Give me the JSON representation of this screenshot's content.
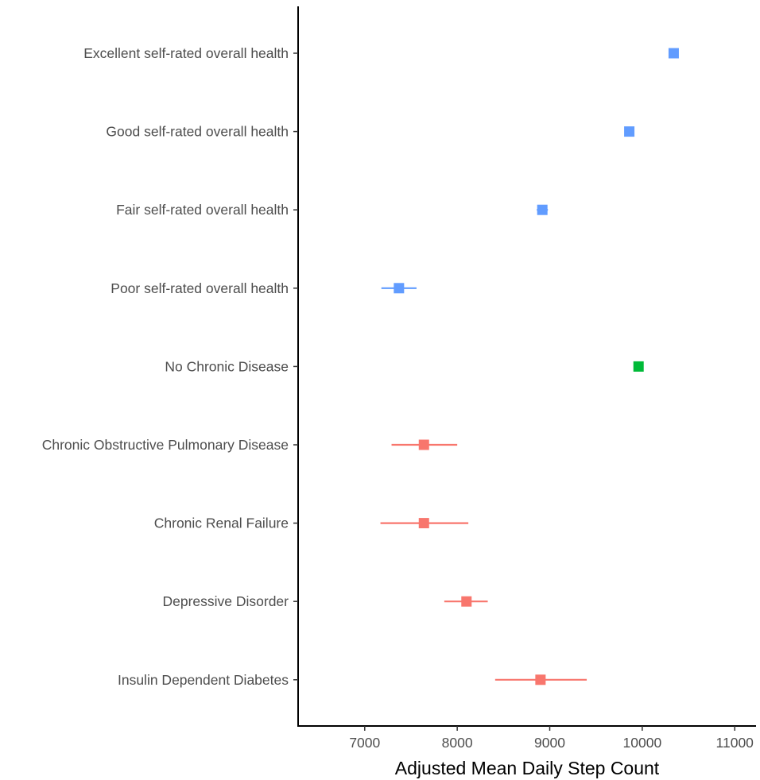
{
  "chart_data": {
    "type": "scatter",
    "subtype": "forest-plot",
    "title": "",
    "xlabel": "Adjusted Mean Daily Step Count",
    "ylabel": "",
    "xlim": [
      6280,
      11230
    ],
    "xticks": [
      7000,
      8000,
      9000,
      10000,
      11000
    ],
    "xtick_labels": [
      "7000",
      "8000",
      "9000",
      "10000",
      "11000"
    ],
    "grid": false,
    "legend": "none",
    "categories": [
      "Excellent self-rated overall health",
      "Good self-rated overall health",
      "Fair self-rated overall health",
      "Poor self-rated overall health",
      "No Chronic Disease",
      "Chronic Obstructive Pulmonary Disease",
      "Chronic Renal Failure",
      "Depressive Disorder",
      "Insulin Dependent Diabetes"
    ],
    "points": [
      {
        "label": "Excellent self-rated overall health",
        "estimate": 10340,
        "lower": 10290,
        "upper": 10390,
        "color": "#619CFF"
      },
      {
        "label": "Good self-rated overall health",
        "estimate": 9860,
        "lower": 9830,
        "upper": 9890,
        "color": "#619CFF"
      },
      {
        "label": "Fair self-rated overall health",
        "estimate": 8920,
        "lower": 8860,
        "upper": 8980,
        "color": "#619CFF"
      },
      {
        "label": "Poor self-rated overall health",
        "estimate": 7370,
        "lower": 7180,
        "upper": 7560,
        "color": "#619CFF"
      },
      {
        "label": "No Chronic Disease",
        "estimate": 9960,
        "lower": 9930,
        "upper": 9990,
        "color": "#00BA38"
      },
      {
        "label": "Chronic Obstructive Pulmonary Disease",
        "estimate": 7640,
        "lower": 7290,
        "upper": 8000,
        "color": "#F8766D"
      },
      {
        "label": "Chronic Renal Failure",
        "estimate": 7640,
        "lower": 7170,
        "upper": 8120,
        "color": "#F8766D"
      },
      {
        "label": "Depressive Disorder",
        "estimate": 8100,
        "lower": 7860,
        "upper": 8330,
        "color": "#F8766D"
      },
      {
        "label": "Insulin Dependent Diabetes",
        "estimate": 8900,
        "lower": 8410,
        "upper": 9400,
        "color": "#F8766D"
      }
    ]
  }
}
